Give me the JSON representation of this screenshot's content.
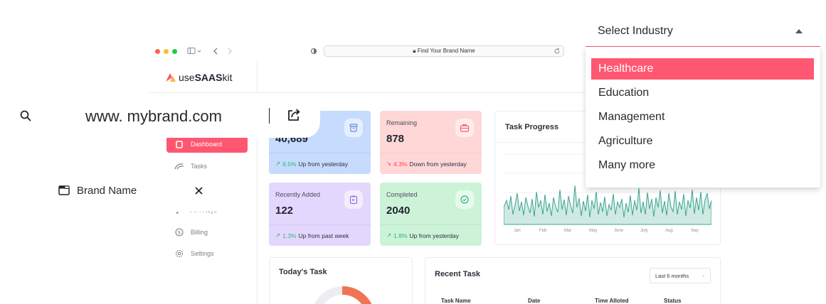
{
  "browser": {
    "url": "Find Your Brand Name"
  },
  "app": {
    "logo_prefix": "use",
    "logo_bold": "SAAS",
    "logo_suffix": "kit",
    "accent": "#ff5671"
  },
  "sidebar": {
    "items": [
      {
        "label": "Dashboard",
        "icon": "dashboard-icon",
        "active": true
      },
      {
        "label": "Tasks",
        "icon": "tasks-icon"
      },
      {
        "label": "API Keys",
        "icon": "key-icon"
      },
      {
        "label": "Billing",
        "icon": "billing-icon"
      },
      {
        "label": "Settings",
        "icon": "settings-icon"
      }
    ]
  },
  "stats": [
    {
      "label": "",
      "value": "40,689",
      "change": "8.5%",
      "note": "Up from yesterday",
      "trend": "up",
      "color": "#c6dbfd",
      "icon": "archive-icon"
    },
    {
      "label": "Remaining",
      "value": "878",
      "change": "4.3%",
      "note": "Down from yesterday",
      "trend": "down",
      "color": "#ffd7d7",
      "icon": "briefcase-icon"
    },
    {
      "label": "Recently Added",
      "value": "122",
      "change": "1.3%",
      "note": "Up from past week",
      "trend": "up",
      "color": "#e4d7fd",
      "icon": "clipboard-icon"
    },
    {
      "label": "Completed",
      "value": "2040",
      "change": "1.8%",
      "note": "Up from yesterday",
      "trend": "up",
      "color": "#ccf3d8",
      "icon": "check-circle-icon"
    }
  ],
  "task_progress": {
    "title": "Task Progress",
    "months": [
      "Jan",
      "Feb",
      "Mar",
      "May",
      "June",
      "July",
      "Aug",
      "Sep"
    ]
  },
  "todays_task": {
    "title": "Today's Task"
  },
  "recent_task": {
    "title": "Recent Task",
    "filter": "Last 6 months",
    "columns": [
      "Task Name",
      "Date",
      "Time Alloted",
      "Status"
    ]
  },
  "domain_widget": {
    "text": "www. mybrand.com",
    "search_icon": "search-icon",
    "share_icon": "share-icon"
  },
  "brand_widget": {
    "label": "Brand Name"
  },
  "industry_select": {
    "placeholder": "Select Industry",
    "options": [
      "Healthcare",
      "Education",
      "Management",
      "Agriculture",
      "Many more"
    ],
    "selected_index": 0
  }
}
